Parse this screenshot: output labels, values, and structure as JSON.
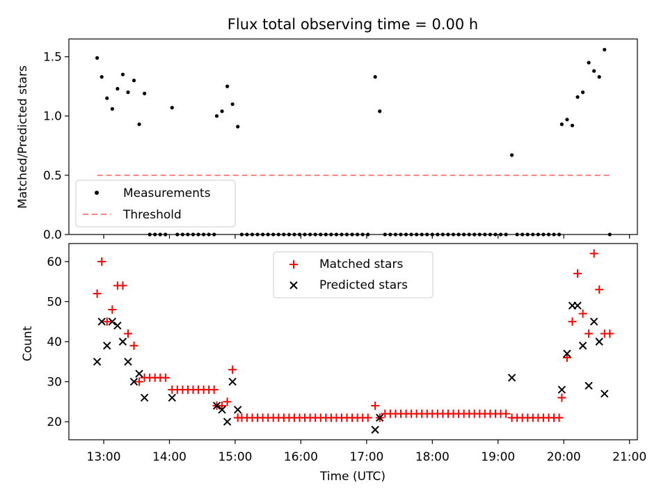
{
  "chart_data": [
    {
      "type": "scatter",
      "title": "Flux total observing time = 0.00 h",
      "ylabel": "Matched/Predicted stars",
      "xlabel": "",
      "xlim": [
        12.47,
        21.12
      ],
      "ylim": [
        0.0,
        1.65
      ],
      "yticks": [
        0.0,
        0.5,
        1.0,
        1.5
      ],
      "ytick_labels": [
        "0.0",
        "0.5",
        "1.0",
        "1.5"
      ],
      "legend_loc": "lower-left",
      "legend": [
        "Measurements",
        "Threshold"
      ],
      "threshold": {
        "value": 0.5,
        "x_range": [
          12.9,
          20.72
        ],
        "color": "#ff8080"
      },
      "series": [
        {
          "name": "Measurements",
          "color": "#000000",
          "marker": "dot",
          "points": [
            [
              12.9,
              1.49
            ],
            [
              12.97,
              1.33
            ],
            [
              13.05,
              1.15
            ],
            [
              13.13,
              1.06
            ],
            [
              13.21,
              1.23
            ],
            [
              13.29,
              1.35
            ],
            [
              13.37,
              1.2
            ],
            [
              13.46,
              1.3
            ],
            [
              13.54,
              0.93
            ],
            [
              13.62,
              1.19
            ],
            [
              13.7,
              0.0
            ],
            [
              13.78,
              0.0
            ],
            [
              13.86,
              0.0
            ],
            [
              13.94,
              0.0
            ],
            [
              14.04,
              1.07
            ],
            [
              14.12,
              0.0
            ],
            [
              14.2,
              0.0
            ],
            [
              14.28,
              0.0
            ],
            [
              14.36,
              0.0
            ],
            [
              14.44,
              0.0
            ],
            [
              14.52,
              0.0
            ],
            [
              14.6,
              0.0
            ],
            [
              14.68,
              0.0
            ],
            [
              14.72,
              1.0
            ],
            [
              14.8,
              1.04
            ],
            [
              14.88,
              1.25
            ],
            [
              14.96,
              1.1
            ],
            [
              15.04,
              0.91
            ],
            [
              15.1,
              0.0
            ],
            [
              15.18,
              0.0
            ],
            [
              15.26,
              0.0
            ],
            [
              15.34,
              0.0
            ],
            [
              15.42,
              0.0
            ],
            [
              15.5,
              0.0
            ],
            [
              15.58,
              0.0
            ],
            [
              15.66,
              0.0
            ],
            [
              15.74,
              0.0
            ],
            [
              15.82,
              0.0
            ],
            [
              15.9,
              0.0
            ],
            [
              15.98,
              0.0
            ],
            [
              16.06,
              0.0
            ],
            [
              16.14,
              0.0
            ],
            [
              16.22,
              0.0
            ],
            [
              16.3,
              0.0
            ],
            [
              16.38,
              0.0
            ],
            [
              16.46,
              0.0
            ],
            [
              16.54,
              0.0
            ],
            [
              16.62,
              0.0
            ],
            [
              16.7,
              0.0
            ],
            [
              16.78,
              0.0
            ],
            [
              16.86,
              0.0
            ],
            [
              16.94,
              0.0
            ],
            [
              17.02,
              0.0
            ],
            [
              17.13,
              1.33
            ],
            [
              17.2,
              1.04
            ],
            [
              17.28,
              0.0
            ],
            [
              17.36,
              0.0
            ],
            [
              17.44,
              0.0
            ],
            [
              17.52,
              0.0
            ],
            [
              17.6,
              0.0
            ],
            [
              17.68,
              0.0
            ],
            [
              17.76,
              0.0
            ],
            [
              17.84,
              0.0
            ],
            [
              17.92,
              0.0
            ],
            [
              18.0,
              0.0
            ],
            [
              18.08,
              0.0
            ],
            [
              18.16,
              0.0
            ],
            [
              18.24,
              0.0
            ],
            [
              18.32,
              0.0
            ],
            [
              18.4,
              0.0
            ],
            [
              18.48,
              0.0
            ],
            [
              18.56,
              0.0
            ],
            [
              18.64,
              0.0
            ],
            [
              18.72,
              0.0
            ],
            [
              18.8,
              0.0
            ],
            [
              18.88,
              0.0
            ],
            [
              18.96,
              0.0
            ],
            [
              19.04,
              0.0
            ],
            [
              19.12,
              0.0
            ],
            [
              19.21,
              0.67
            ],
            [
              19.29,
              0.0
            ],
            [
              19.37,
              0.0
            ],
            [
              19.45,
              0.0
            ],
            [
              19.53,
              0.0
            ],
            [
              19.61,
              0.0
            ],
            [
              19.69,
              0.0
            ],
            [
              19.77,
              0.0
            ],
            [
              19.85,
              0.0
            ],
            [
              19.93,
              0.0
            ],
            [
              19.97,
              0.93
            ],
            [
              20.05,
              0.97
            ],
            [
              20.13,
              0.92
            ],
            [
              20.21,
              1.16
            ],
            [
              20.29,
              1.2
            ],
            [
              20.38,
              1.45
            ],
            [
              20.46,
              1.38
            ],
            [
              20.54,
              1.33
            ],
            [
              20.62,
              1.56
            ],
            [
              20.7,
              0.0
            ]
          ]
        }
      ]
    },
    {
      "type": "scatter",
      "title": "",
      "ylabel": "Count",
      "xlabel": "Time (UTC)",
      "xlim": [
        12.47,
        21.12
      ],
      "ylim": [
        15.5,
        64.5
      ],
      "yticks": [
        20,
        30,
        40,
        50,
        60
      ],
      "ytick_labels": [
        "20",
        "30",
        "40",
        "50",
        "60"
      ],
      "xticks": [
        13,
        14,
        15,
        16,
        17,
        18,
        19,
        20,
        21
      ],
      "xtick_labels": [
        "13:00",
        "14:00",
        "15:00",
        "16:00",
        "17:00",
        "18:00",
        "19:00",
        "20:00",
        "21:00"
      ],
      "legend_loc": "top-center",
      "legend": [
        "Matched stars",
        "Predicted stars"
      ],
      "series": [
        {
          "name": "Matched stars",
          "color": "#ff0000",
          "marker": "plus",
          "points": [
            [
              12.9,
              52
            ],
            [
              12.97,
              60
            ],
            [
              13.05,
              45
            ],
            [
              13.13,
              48
            ],
            [
              13.21,
              54
            ],
            [
              13.29,
              54
            ],
            [
              13.37,
              42
            ],
            [
              13.46,
              39
            ],
            [
              13.54,
              30
            ],
            [
              13.62,
              31
            ],
            [
              13.7,
              31
            ],
            [
              13.78,
              31
            ],
            [
              13.86,
              31
            ],
            [
              13.94,
              31
            ],
            [
              14.04,
              28
            ],
            [
              14.12,
              28
            ],
            [
              14.2,
              28
            ],
            [
              14.28,
              28
            ],
            [
              14.36,
              28
            ],
            [
              14.44,
              28
            ],
            [
              14.52,
              28
            ],
            [
              14.6,
              28
            ],
            [
              14.68,
              28
            ],
            [
              14.72,
              24
            ],
            [
              14.8,
              24
            ],
            [
              14.88,
              25
            ],
            [
              14.96,
              33
            ],
            [
              15.04,
              21
            ],
            [
              15.1,
              21
            ],
            [
              15.18,
              21
            ],
            [
              15.26,
              21
            ],
            [
              15.34,
              21
            ],
            [
              15.42,
              21
            ],
            [
              15.5,
              21
            ],
            [
              15.58,
              21
            ],
            [
              15.66,
              21
            ],
            [
              15.74,
              21
            ],
            [
              15.82,
              21
            ],
            [
              15.9,
              21
            ],
            [
              15.98,
              21
            ],
            [
              16.06,
              21
            ],
            [
              16.14,
              21
            ],
            [
              16.22,
              21
            ],
            [
              16.3,
              21
            ],
            [
              16.38,
              21
            ],
            [
              16.46,
              21
            ],
            [
              16.54,
              21
            ],
            [
              16.62,
              21
            ],
            [
              16.7,
              21
            ],
            [
              16.78,
              21
            ],
            [
              16.86,
              21
            ],
            [
              16.94,
              21
            ],
            [
              17.02,
              21
            ],
            [
              17.13,
              24
            ],
            [
              17.2,
              21
            ],
            [
              17.28,
              22
            ],
            [
              17.36,
              22
            ],
            [
              17.44,
              22
            ],
            [
              17.52,
              22
            ],
            [
              17.6,
              22
            ],
            [
              17.68,
              22
            ],
            [
              17.76,
              22
            ],
            [
              17.84,
              22
            ],
            [
              17.92,
              22
            ],
            [
              18.0,
              22
            ],
            [
              18.08,
              22
            ],
            [
              18.16,
              22
            ],
            [
              18.24,
              22
            ],
            [
              18.32,
              22
            ],
            [
              18.4,
              22
            ],
            [
              18.48,
              22
            ],
            [
              18.56,
              22
            ],
            [
              18.64,
              22
            ],
            [
              18.72,
              22
            ],
            [
              18.8,
              22
            ],
            [
              18.88,
              22
            ],
            [
              18.96,
              22
            ],
            [
              19.04,
              22
            ],
            [
              19.12,
              22
            ],
            [
              19.21,
              21
            ],
            [
              19.29,
              21
            ],
            [
              19.37,
              21
            ],
            [
              19.45,
              21
            ],
            [
              19.53,
              21
            ],
            [
              19.61,
              21
            ],
            [
              19.69,
              21
            ],
            [
              19.77,
              21
            ],
            [
              19.85,
              21
            ],
            [
              19.93,
              21
            ],
            [
              19.97,
              26
            ],
            [
              20.05,
              36
            ],
            [
              20.13,
              45
            ],
            [
              20.21,
              57
            ],
            [
              20.29,
              47
            ],
            [
              20.38,
              42
            ],
            [
              20.46,
              62
            ],
            [
              20.54,
              53
            ],
            [
              20.62,
              42
            ],
            [
              20.7,
              42
            ]
          ]
        },
        {
          "name": "Predicted stars",
          "color": "#000000",
          "marker": "x",
          "points": [
            [
              12.9,
              35
            ],
            [
              12.97,
              45
            ],
            [
              13.05,
              39
            ],
            [
              13.13,
              45
            ],
            [
              13.21,
              44
            ],
            [
              13.29,
              40
            ],
            [
              13.37,
              35
            ],
            [
              13.46,
              30
            ],
            [
              13.54,
              32
            ],
            [
              13.62,
              26
            ],
            [
              14.04,
              26
            ],
            [
              14.72,
              24
            ],
            [
              14.8,
              23
            ],
            [
              14.88,
              20
            ],
            [
              14.96,
              30
            ],
            [
              15.04,
              23
            ],
            [
              17.13,
              18
            ],
            [
              17.2,
              21
            ],
            [
              19.21,
              31
            ],
            [
              19.97,
              28
            ],
            [
              20.05,
              37
            ],
            [
              20.13,
              49
            ],
            [
              20.21,
              49
            ],
            [
              20.29,
              39
            ],
            [
              20.38,
              29
            ],
            [
              20.46,
              45
            ],
            [
              20.54,
              40
            ],
            [
              20.62,
              27
            ]
          ]
        }
      ]
    }
  ]
}
